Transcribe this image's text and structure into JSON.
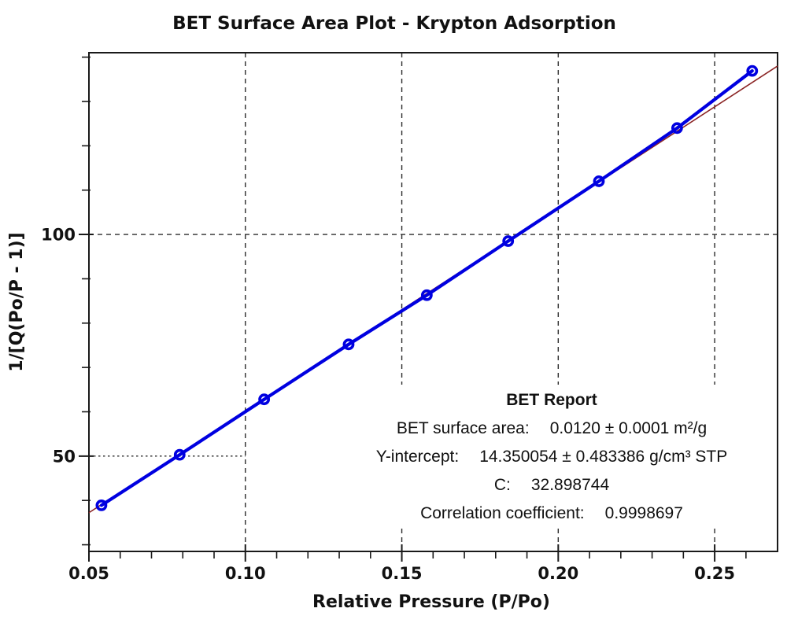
{
  "chart_data": {
    "type": "scatter",
    "title": "BET Surface Area Plot - Krypton Adsorption",
    "xlabel": "Relative Pressure (P/Po)",
    "ylabel": "1/[Q(Po/P - 1)]",
    "xlim": [
      0.05,
      0.2701
    ],
    "ylim": [
      28.5,
      141.0
    ],
    "x_major_ticks": [
      0.05,
      0.1,
      0.15,
      0.2,
      0.25
    ],
    "x_tick_labels": [
      "0.05",
      "0.10",
      "0.15",
      "0.20",
      "0.25"
    ],
    "x_minor_ticks": [
      0.06,
      0.07,
      0.08,
      0.09,
      0.11,
      0.12,
      0.13,
      0.14,
      0.16,
      0.17,
      0.18,
      0.19,
      0.21,
      0.22,
      0.23,
      0.24,
      0.26
    ],
    "y_major_ticks": [
      50,
      100
    ],
    "y_tick_labels": [
      "50",
      "100"
    ],
    "y_minor_ticks": [
      30,
      40,
      60,
      70,
      80,
      90,
      110,
      120,
      130,
      140
    ],
    "grid_x": [
      0.1,
      0.15,
      0.2,
      0.25
    ],
    "grid_y_full": [
      100
    ],
    "grid_y_partial": [
      {
        "y": 50,
        "x_end": 0.1
      }
    ],
    "grid_on": true,
    "legend": "none",
    "series": [
      {
        "name": "krypton-adsorption-points",
        "type": "scatter-line",
        "color": "#0000e0",
        "marker": "open-circle",
        "points": [
          [
            0.054,
            38.9
          ],
          [
            0.079,
            50.3
          ],
          [
            0.106,
            62.8
          ],
          [
            0.133,
            75.2
          ],
          [
            0.158,
            86.3
          ],
          [
            0.184,
            98.5
          ],
          [
            0.213,
            112.0
          ],
          [
            0.238,
            124.0
          ],
          [
            0.262,
            136.9
          ]
        ]
      },
      {
        "name": "bet-fit-line",
        "type": "regression-line",
        "color": "#8b2525",
        "intercept": 14.350054,
        "slope": 457.744,
        "x_range": [
          0.05,
          0.2701
        ]
      }
    ],
    "annotation": {
      "heading": "BET Report",
      "rows": [
        {
          "label": "BET surface area:",
          "value": "0.0120 ± 0.0001 m²/g"
        },
        {
          "label": "Y-intercept:",
          "value": "14.350054 ± 0.483386 g/cm³ STP"
        },
        {
          "label": "C:",
          "value": "32.898744"
        },
        {
          "label": "Correlation coefficient:",
          "value": "0.9998697"
        }
      ]
    },
    "colors": {
      "data_series": "#0000e0",
      "fit_line": "#8b2525",
      "axis": "#1a1a1a",
      "grid": "#2b2b2b",
      "background": "#ffffff"
    }
  }
}
